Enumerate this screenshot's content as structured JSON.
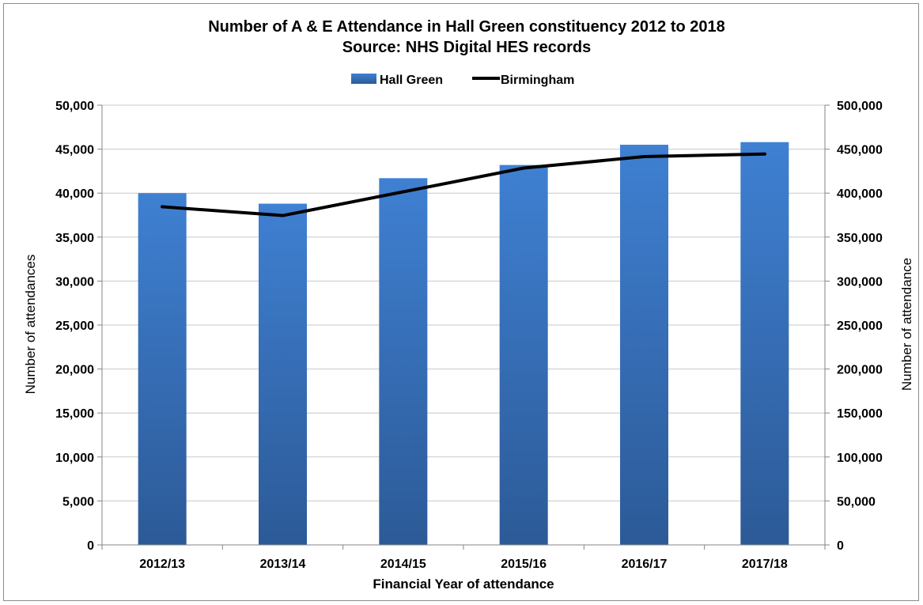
{
  "chart_data": {
    "type": "bar",
    "title": "Number of A & E Attendance in Hall Green constituency 2012 to 2018",
    "subtitle": "Source: NHS Digital HES records",
    "categories": [
      "2012/13",
      "2013/14",
      "2014/15",
      "2015/16",
      "2016/17",
      "2017/18"
    ],
    "series": [
      {
        "name": "Hall Green",
        "type": "bar",
        "axis": "left",
        "color": "#3a78c6",
        "values": [
          40000,
          38800,
          41700,
          43200,
          45500,
          45800
        ]
      },
      {
        "name": "Birmingham",
        "type": "line",
        "axis": "right",
        "color": "#000000",
        "values": [
          384500,
          374500,
          401500,
          428500,
          441500,
          444500
        ]
      }
    ],
    "xlabel": "Financial Year of attendance",
    "ylabel": "Number of attendances",
    "y2label": "Number of attendance",
    "ylim": [
      0,
      50000
    ],
    "y2lim": [
      0,
      500000
    ],
    "yticks": [
      "0",
      "5,000",
      "10,000",
      "15,000",
      "20,000",
      "25,000",
      "30,000",
      "35,000",
      "40,000",
      "45,000",
      "50,000"
    ],
    "y2ticks": [
      "0",
      "50,000",
      "100,000",
      "150,000",
      "200,000",
      "250,000",
      "300,000",
      "350,000",
      "400,000",
      "450,000",
      "500,000"
    ],
    "grid": true,
    "legend_position": "top-center"
  }
}
